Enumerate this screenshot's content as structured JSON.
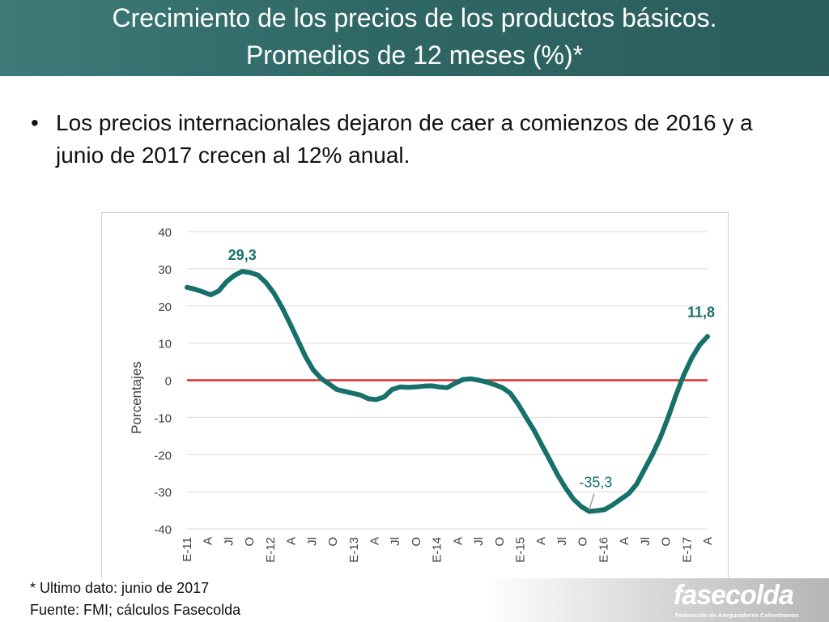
{
  "slide": {
    "title_line1": "Crecimiento de los precios de los productos básicos.",
    "title_line2": "Promedios de 12 meses (%)*",
    "bullet_symbol": "•",
    "bullet_text": "Los precios internacionales dejaron de caer a comienzos de 2016 y a junio de 2017 crecen al 12% anual.",
    "note_line1": "* Ultimo dato: junio de 2017",
    "note_line2": "Fuente: FMI; cálculos Fasecolda",
    "logo_text": "fasecolda",
    "logo_subtext": "Federación de Aseguradores Colombianos"
  },
  "colors": {
    "title_bar": "#2f6765",
    "series": "#17706a",
    "zero_line": "#d9312b",
    "grid": "#d9d9d9",
    "axis_text": "#404040"
  },
  "chart_data": {
    "type": "line",
    "title": "",
    "xlabel": "",
    "ylabel": "Porcentajes",
    "ylim": [
      -40,
      40
    ],
    "yticks": [
      40,
      30,
      20,
      10,
      0,
      -10,
      -20,
      -30,
      -40
    ],
    "grid": true,
    "x_tick_labels": [
      "E-11",
      "A",
      "Jl",
      "O",
      "E-12",
      "A",
      "Jl",
      "O",
      "E-13",
      "A",
      "Jl",
      "O",
      "E-14",
      "A",
      "Jl",
      "O",
      "E-15",
      "A",
      "Jl",
      "O",
      "E-16",
      "A",
      "Jl",
      "O",
      "E-17",
      "A"
    ],
    "reference_line": {
      "y": 0
    },
    "series": [
      {
        "values": [
          25,
          24.5,
          23.8,
          23,
          24,
          26.5,
          28.2,
          29.3,
          29,
          28.3,
          26.3,
          23.5,
          19.8,
          15.5,
          11,
          6.5,
          2.8,
          0.5,
          -1,
          -2.5,
          -3,
          -3.5,
          -4,
          -5,
          -5.2,
          -4.5,
          -2.5,
          -1.8,
          -1.9,
          -1.8,
          -1.6,
          -1.5,
          -1.8,
          -2,
          -0.8,
          0.2,
          0.4,
          0,
          -0.5,
          -1.2,
          -2,
          -3.5,
          -6.5,
          -10,
          -13.5,
          -17.5,
          -21.5,
          -25.5,
          -29,
          -32,
          -34,
          -35.3,
          -35.1,
          -34.8,
          -33.5,
          -32,
          -30.5,
          -28,
          -24,
          -20,
          -15.5,
          -10,
          -4,
          1.5,
          6,
          9.5,
          11.8
        ]
      }
    ],
    "annotations": [
      {
        "label": "29,3",
        "value": 29.3
      },
      {
        "label": "-35,3",
        "value": -35.3
      },
      {
        "label": "11,8",
        "value": 11.8
      }
    ]
  }
}
